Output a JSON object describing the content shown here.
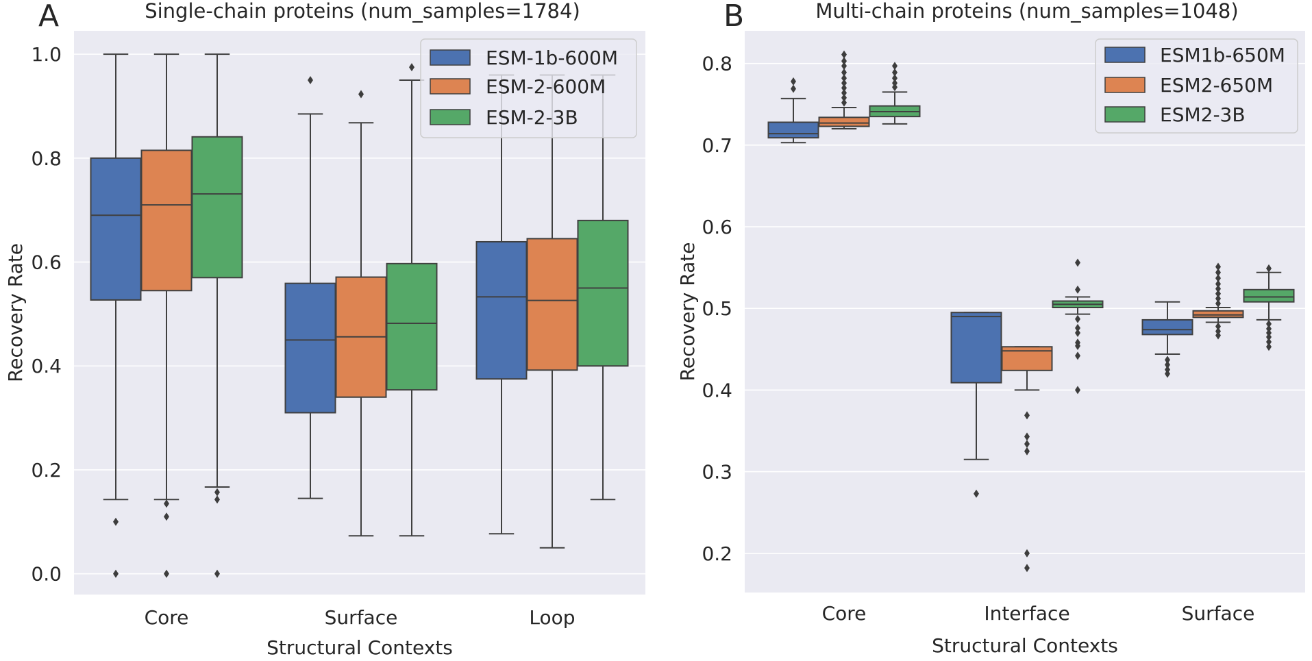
{
  "chart_data": [
    {
      "panel_label": "A",
      "type": "box",
      "title": "Single-chain proteins (num_samples=1784)",
      "xlabel": "Structural Contexts",
      "ylabel": "Recovery Rate",
      "ylim": [
        -0.04,
        1.045
      ],
      "yticks": [
        0.0,
        0.2,
        0.4,
        0.6,
        0.8,
        1.0
      ],
      "ytick_labels": [
        "0.0",
        "0.2",
        "0.4",
        "0.6",
        "0.8",
        "1.0"
      ],
      "categories": [
        "Core",
        "Surface",
        "Loop"
      ],
      "legend_position": "top-right",
      "series": [
        {
          "name": "ESM-1b-600M",
          "color": "#4c72b0",
          "boxes": [
            {
              "q1": 0.527,
              "median": 0.69,
              "q3": 0.8,
              "whisker_low": 0.143,
              "whisker_high": 1.0,
              "outliers": [
                0.1,
                0.0
              ]
            },
            {
              "q1": 0.31,
              "median": 0.45,
              "q3": 0.559,
              "whisker_low": 0.145,
              "whisker_high": 0.885,
              "outliers": [
                0.95
              ]
            },
            {
              "q1": 0.375,
              "median": 0.533,
              "q3": 0.639,
              "whisker_low": 0.077,
              "whisker_high": 0.96,
              "outliers": []
            }
          ]
        },
        {
          "name": "ESM-2-600M",
          "color": "#dd8452",
          "boxes": [
            {
              "q1": 0.545,
              "median": 0.71,
              "q3": 0.815,
              "whisker_low": 0.143,
              "whisker_high": 1.0,
              "outliers": [
                0.135,
                0.11,
                0.0
              ]
            },
            {
              "q1": 0.34,
              "median": 0.456,
              "q3": 0.571,
              "whisker_low": 0.073,
              "whisker_high": 0.868,
              "outliers": [
                0.923
              ]
            },
            {
              "q1": 0.392,
              "median": 0.526,
              "q3": 0.645,
              "whisker_low": 0.05,
              "whisker_high": 0.96,
              "outliers": []
            }
          ]
        },
        {
          "name": "ESM-2-3B",
          "color": "#55a868",
          "boxes": [
            {
              "q1": 0.57,
              "median": 0.731,
              "q3": 0.841,
              "whisker_low": 0.167,
              "whisker_high": 1.0,
              "outliers": [
                0.157,
                0.143,
                0.0
              ]
            },
            {
              "q1": 0.354,
              "median": 0.482,
              "q3": 0.597,
              "whisker_low": 0.073,
              "whisker_high": 0.95,
              "outliers": [
                0.975
              ]
            },
            {
              "q1": 0.4,
              "median": 0.55,
              "q3": 0.68,
              "whisker_low": 0.143,
              "whisker_high": 0.96,
              "outliers": []
            }
          ]
        }
      ]
    },
    {
      "panel_label": "B",
      "type": "box",
      "title": "Multi-chain proteins (num_samples=1048)",
      "xlabel": "Structural Contexts",
      "ylabel": "Recovery Rate",
      "ylim": [
        0.152,
        0.84
      ],
      "yticks": [
        0.2,
        0.3,
        0.4,
        0.5,
        0.6,
        0.7,
        0.8
      ],
      "ytick_labels": [
        "0.2",
        "0.3",
        "0.4",
        "0.5",
        "0.6",
        "0.7",
        "0.8"
      ],
      "categories": [
        "Core",
        "Interface",
        "Surface"
      ],
      "legend_position": "top-right",
      "series": [
        {
          "name": "ESM1b-650M",
          "color": "#4c72b0",
          "boxes": [
            {
              "q1": 0.709,
              "median": 0.714,
              "q3": 0.728,
              "whisker_low": 0.703,
              "whisker_high": 0.757,
              "outliers": [
                0.769,
                0.778
              ]
            },
            {
              "q1": 0.409,
              "median": 0.49,
              "q3": 0.495,
              "whisker_low": 0.315,
              "whisker_high": 0.495,
              "outliers": [
                0.273
              ]
            },
            {
              "q1": 0.468,
              "median": 0.474,
              "q3": 0.486,
              "whisker_low": 0.444,
              "whisker_high": 0.508,
              "outliers": [
                0.437,
                0.431,
                0.425,
                0.42
              ]
            }
          ]
        },
        {
          "name": "ESM2-650M",
          "color": "#dd8452",
          "boxes": [
            {
              "q1": 0.723,
              "median": 0.727,
              "q3": 0.734,
              "whisker_low": 0.72,
              "whisker_high": 0.746,
              "outliers": [
                0.752,
                0.758,
                0.764,
                0.77,
                0.776,
                0.782,
                0.789,
                0.797,
                0.803,
                0.811
              ]
            },
            {
              "q1": 0.424,
              "median": 0.448,
              "q3": 0.453,
              "whisker_low": 0.4,
              "whisker_high": 0.453,
              "outliers": [
                0.369,
                0.343,
                0.334,
                0.325,
                0.2,
                0.182
              ]
            },
            {
              "q1": 0.489,
              "median": 0.492,
              "q3": 0.497,
              "whisker_low": 0.483,
              "whisker_high": 0.501,
              "outliers": [
                0.478,
                0.472,
                0.467,
                0.506,
                0.512,
                0.518,
                0.524,
                0.53,
                0.537,
                0.544,
                0.551
              ]
            }
          ]
        },
        {
          "name": "ESM2-3B",
          "color": "#55a868",
          "boxes": [
            {
              "q1": 0.735,
              "median": 0.741,
              "q3": 0.748,
              "whisker_low": 0.726,
              "whisker_high": 0.765,
              "outliers": [
                0.771,
                0.776,
                0.782,
                0.789,
                0.797
              ]
            },
            {
              "q1": 0.501,
              "median": 0.505,
              "q3": 0.509,
              "whisker_low": 0.493,
              "whisker_high": 0.514,
              "outliers": [
                0.523,
                0.556,
                0.487,
                0.476,
                0.47,
                0.458,
                0.454,
                0.442,
                0.4
              ]
            },
            {
              "q1": 0.508,
              "median": 0.514,
              "q3": 0.523,
              "whisker_low": 0.486,
              "whisker_high": 0.544,
              "outliers": [
                0.549,
                0.481,
                0.475,
                0.47,
                0.465,
                0.459,
                0.453
              ]
            }
          ]
        }
      ]
    }
  ]
}
